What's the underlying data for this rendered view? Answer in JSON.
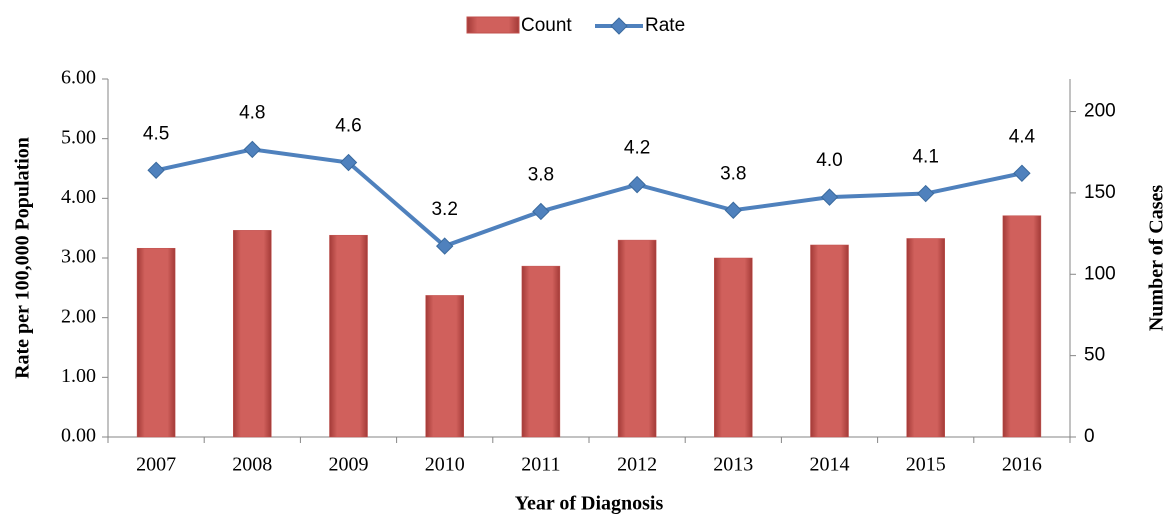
{
  "chart_data": {
    "type": "bar_line",
    "x_label": "Year of Diagnosis",
    "y_label": "Rate per 100,000 Population",
    "y2_label": "Number of Cases",
    "categories": [
      "2007",
      "2008",
      "2009",
      "2010",
      "2011",
      "2012",
      "2013",
      "2014",
      "2015",
      "2016"
    ],
    "series": [
      {
        "name": "Count",
        "type": "bar",
        "axis": "y2",
        "color": "#c0504d",
        "values": [
          116,
          127,
          124,
          87,
          105,
          121,
          110,
          118,
          122,
          136
        ]
      },
      {
        "name": "Rate",
        "type": "line",
        "color": "#4f81bd",
        "values": [
          4.47,
          4.82,
          4.6,
          3.2,
          3.78,
          4.23,
          3.8,
          4.02,
          4.08,
          4.42
        ],
        "value_labels": [
          "4.5",
          "4.8",
          "4.6",
          "3.2",
          "3.8",
          "4.2",
          "3.8",
          "4.0",
          "4.1",
          "4.4"
        ]
      }
    ],
    "ylim": [
      0,
      6
    ],
    "yticks": [
      {
        "value": 0,
        "label": "0.00"
      },
      {
        "value": 1,
        "label": "1.00"
      },
      {
        "value": 2,
        "label": "2.00"
      },
      {
        "value": 3,
        "label": "3.00"
      },
      {
        "value": 4,
        "label": "4.00"
      },
      {
        "value": 5,
        "label": "5.00"
      },
      {
        "value": 6,
        "label": "6.00"
      }
    ],
    "y2lim": [
      0,
      220
    ],
    "y2ticks": [
      0,
      50,
      100,
      150,
      200
    ],
    "legend": "top"
  }
}
